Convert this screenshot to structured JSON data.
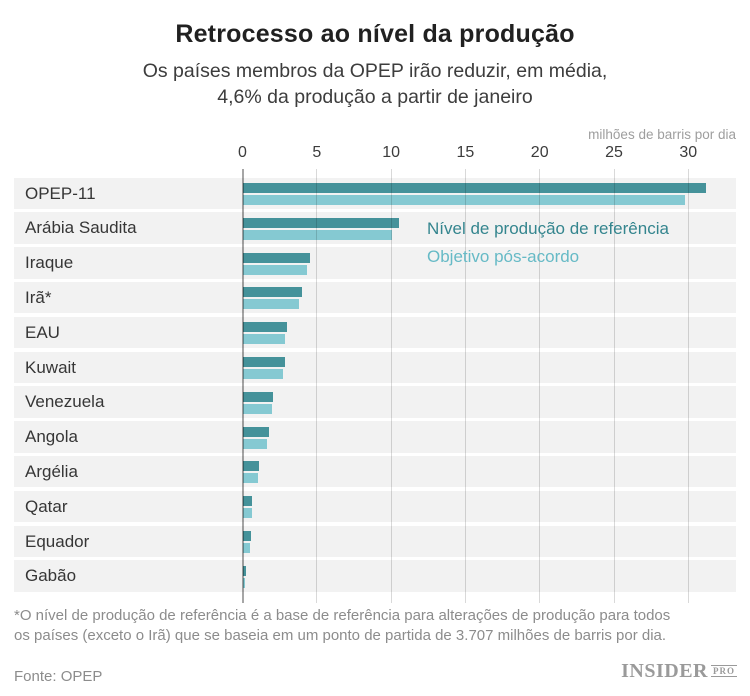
{
  "title": "Retrocesso ao nível da produção",
  "subtitle_line1": "Os países membros da OPEP irão reduzir, em média,",
  "subtitle_line2": "4,6% da produção a partir de janeiro",
  "axis_unit_label": "milhões de barris por dia",
  "legend": [
    {
      "label": "Nível de produção de referência",
      "color": "#34858e"
    },
    {
      "label": "Objetivo pós-acordo",
      "color": "#66bac6"
    }
  ],
  "colors": {
    "reference_bar": "#45929a",
    "target_bar": "#85c9d2",
    "row_background": "#f2f2f2"
  },
  "footnote_line1": "*O nível de produção de referência é a base de referência para alterações de produção para todos",
  "footnote_line2": "os países (exceto o Irã) que se baseia em um ponto de partida de 3.707 milhões de barris por dia.",
  "source": "Fonte: OPEP",
  "logo": {
    "name": "INSIDER",
    "suffix": "PRO"
  },
  "chart_data": {
    "type": "bar",
    "orientation": "horizontal",
    "title": "Retrocesso ao nível da produção",
    "unit": "milhões de barris por dia",
    "x_ticks": [
      0,
      5,
      10,
      15,
      20,
      25,
      30
    ],
    "xlim": [
      0,
      33.3
    ],
    "grid": true,
    "legend_position": "inside-top-right",
    "categories": [
      "OPEP-11",
      "Arábia Saudita",
      "Iraque",
      "Irã*",
      "EAU",
      "Kuwait",
      "Venezuela",
      "Angola",
      "Argélia",
      "Qatar",
      "Equador",
      "Gabão"
    ],
    "series": [
      {
        "name": "Nível de produção de referência",
        "color": "#45929a",
        "values": [
          31.161,
          10.544,
          4.561,
          3.975,
          3.013,
          2.838,
          2.067,
          1.751,
          1.089,
          0.648,
          0.548,
          0.202
        ]
      },
      {
        "name": "Objetivo pós-acordo",
        "color": "#85c9d2",
        "values": [
          29.804,
          10.058,
          4.351,
          3.797,
          2.874,
          2.707,
          1.972,
          1.673,
          1.039,
          0.618,
          0.522,
          0.193
        ]
      }
    ]
  }
}
